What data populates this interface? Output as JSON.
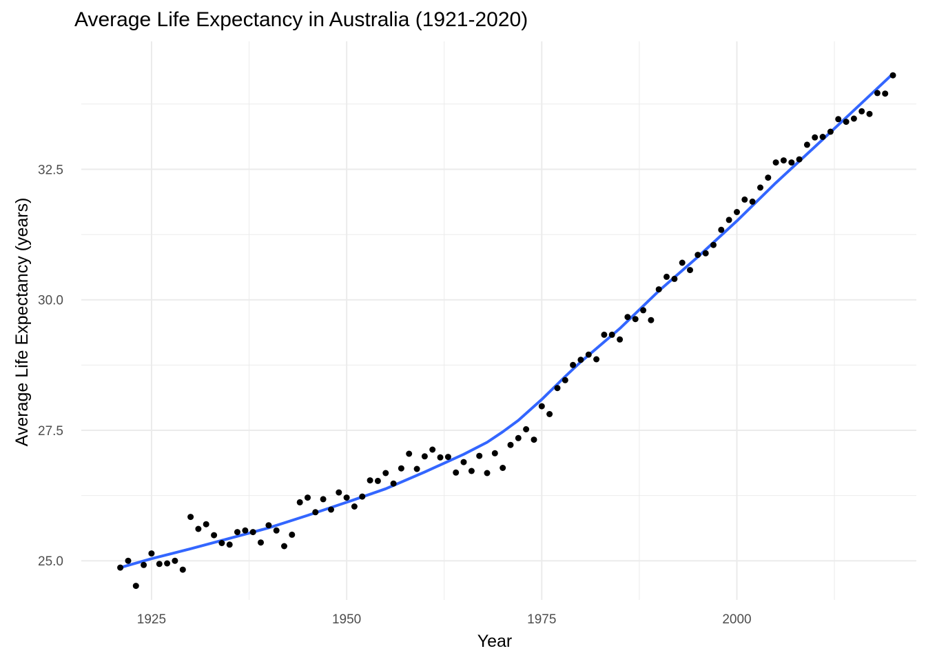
{
  "chart_data": {
    "type": "scatter",
    "title": "Average Life Expectancy in Australia (1921-2020)",
    "xlabel": "Year",
    "ylabel": "Average Life Expectancy (years)",
    "xlim": [
      1916,
      2023
    ],
    "ylim": [
      24.25,
      34.95
    ],
    "x_ticks": [
      1925,
      1950,
      1975,
      2000
    ],
    "x_tick_labels": [
      "1925",
      "1950",
      "1975",
      "2000"
    ],
    "y_ticks": [
      25.0,
      27.5,
      30.0,
      32.5
    ],
    "y_tick_labels": [
      "25.0",
      "27.5",
      "30.0",
      "32.5"
    ],
    "grid": true,
    "legend": "none",
    "colors": {
      "points": "#000000",
      "trend": "#3366ff",
      "grid": "#ebebeb"
    },
    "series": [
      {
        "type": "scatter",
        "x": [
          1921,
          1922,
          1923,
          1924,
          1925,
          1926,
          1927,
          1928,
          1929,
          1930,
          1931,
          1932,
          1933,
          1934,
          1935,
          1936,
          1937,
          1938,
          1939,
          1940,
          1941,
          1942,
          1943,
          1944,
          1945,
          1946,
          1947,
          1948,
          1949,
          1950,
          1951,
          1952,
          1953,
          1954,
          1955,
          1956,
          1957,
          1958,
          1959,
          1960,
          1961,
          1962,
          1963,
          1964,
          1965,
          1966,
          1967,
          1968,
          1969,
          1970,
          1971,
          1972,
          1973,
          1974,
          1975,
          1976,
          1977,
          1978,
          1979,
          1980,
          1981,
          1982,
          1983,
          1984,
          1985,
          1986,
          1987,
          1988,
          1989,
          1990,
          1991,
          1992,
          1993,
          1994,
          1995,
          1996,
          1997,
          1998,
          1999,
          2000,
          2001,
          2002,
          2003,
          2004,
          2005,
          2006,
          2007,
          2008,
          2009,
          2010,
          2011,
          2012,
          2013,
          2014,
          2015,
          2016,
          2017,
          2018,
          2019,
          2020
        ],
        "y": [
          24.87,
          25.0,
          24.52,
          24.92,
          25.14,
          24.94,
          24.95,
          25.0,
          24.83,
          25.84,
          25.61,
          25.7,
          25.49,
          25.34,
          25.31,
          25.55,
          25.58,
          25.55,
          25.35,
          25.68,
          25.58,
          25.28,
          25.5,
          26.12,
          26.21,
          25.93,
          26.18,
          25.98,
          26.31,
          26.21,
          26.04,
          26.23,
          26.54,
          26.53,
          26.68,
          26.48,
          26.77,
          27.05,
          26.76,
          27.0,
          27.13,
          26.98,
          26.99,
          26.69,
          26.89,
          26.72,
          27.01,
          26.68,
          27.06,
          26.78,
          27.22,
          27.35,
          27.52,
          27.32,
          27.96,
          27.81,
          28.31,
          28.46,
          28.75,
          28.85,
          28.95,
          28.86,
          29.33,
          29.33,
          29.24,
          29.67,
          29.63,
          29.8,
          29.61,
          30.2,
          30.44,
          30.4,
          30.71,
          30.57,
          30.86,
          30.89,
          31.05,
          31.34,
          31.53,
          31.68,
          31.92,
          31.88,
          32.15,
          32.34,
          32.63,
          32.67,
          32.63,
          32.69,
          32.97,
          33.11,
          33.12,
          33.22,
          33.46,
          33.41,
          33.47,
          33.61,
          33.56,
          33.96,
          33.95,
          34.3
        ]
      },
      {
        "type": "line",
        "name": "trend",
        "x": [
          1921,
          1925,
          1930,
          1935,
          1940,
          1945,
          1950,
          1955,
          1960,
          1965,
          1968,
          1970,
          1972,
          1975,
          1978,
          1980,
          1985,
          1990,
          1995,
          2000,
          2005,
          2010,
          2015,
          2020
        ],
        "y": [
          24.87,
          25.04,
          25.23,
          25.43,
          25.63,
          25.87,
          26.12,
          26.38,
          26.7,
          27.04,
          27.27,
          27.47,
          27.69,
          28.09,
          28.53,
          28.81,
          29.45,
          30.17,
          30.82,
          31.51,
          32.24,
          32.93,
          33.63,
          34.33
        ]
      }
    ]
  }
}
